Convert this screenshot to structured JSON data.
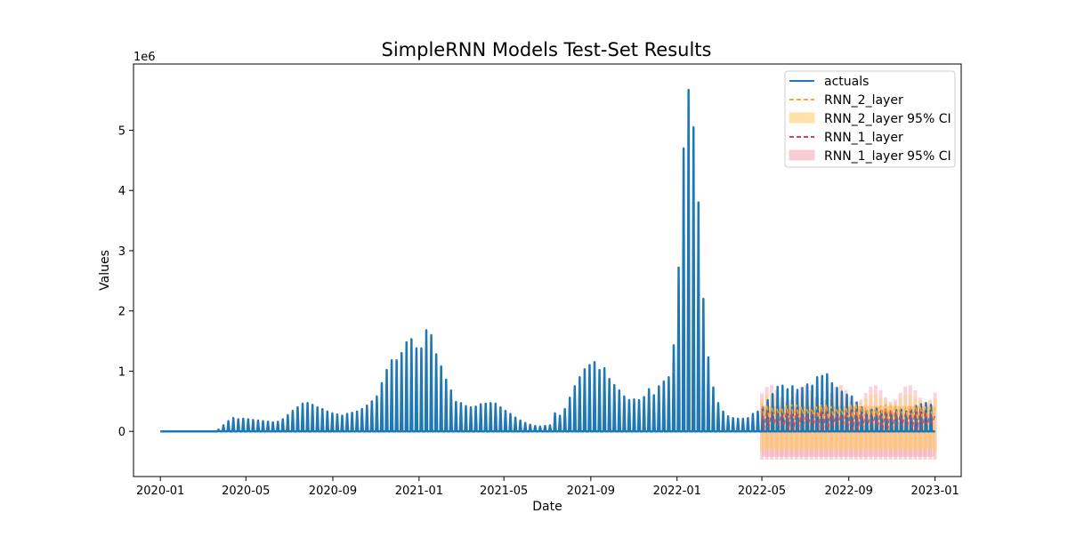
{
  "chart_data": {
    "type": "line",
    "title": "SimpleRNN Models Test-Set Results",
    "xlabel": "Date",
    "ylabel": "Values",
    "y_offset_text": "1e6",
    "xlim": [
      "2019-11-24",
      "2023-02-07"
    ],
    "ylim": [
      -0.75,
      6.1
    ],
    "y_ticks": [
      0,
      1,
      2,
      3,
      4,
      5
    ],
    "x_ticks": [
      "2020-01",
      "2020-05",
      "2020-09",
      "2021-01",
      "2021-05",
      "2021-09",
      "2022-01",
      "2022-05",
      "2022-09",
      "2023-01"
    ],
    "legend_position": "top-right",
    "legend": [
      {
        "label": "actuals",
        "kind": "line",
        "color": "#1f77b4"
      },
      {
        "label": "RNN_2_layer",
        "kind": "dashed",
        "color": "#ffa726"
      },
      {
        "label": "RNN_2_layer 95% CI",
        "kind": "band",
        "color": "#ffcc66"
      },
      {
        "label": "RNN_1_layer",
        "kind": "dashed",
        "color": "#d9435a"
      },
      {
        "label": "RNN_1_layer 95% CI",
        "kind": "band",
        "color": "#f4a6b4"
      }
    ],
    "series": [
      {
        "name": "actuals",
        "color": "#1f77b4",
        "weekly_peaks": [
          [
            "2020-01-01",
            0.0
          ],
          [
            "2020-02-01",
            0.0
          ],
          [
            "2020-03-01",
            0.0
          ],
          [
            "2020-03-22",
            0.03
          ],
          [
            "2020-03-29",
            0.1
          ],
          [
            "2020-04-05",
            0.17
          ],
          [
            "2020-04-12",
            0.22
          ],
          [
            "2020-04-19",
            0.2
          ],
          [
            "2020-04-26",
            0.21
          ],
          [
            "2020-05-03",
            0.2
          ],
          [
            "2020-05-10",
            0.19
          ],
          [
            "2020-05-17",
            0.18
          ],
          [
            "2020-05-24",
            0.17
          ],
          [
            "2020-05-31",
            0.16
          ],
          [
            "2020-06-07",
            0.15
          ],
          [
            "2020-06-14",
            0.16
          ],
          [
            "2020-06-21",
            0.2
          ],
          [
            "2020-06-28",
            0.27
          ],
          [
            "2020-07-05",
            0.34
          ],
          [
            "2020-07-12",
            0.4
          ],
          [
            "2020-07-19",
            0.46
          ],
          [
            "2020-07-26",
            0.47
          ],
          [
            "2020-08-02",
            0.44
          ],
          [
            "2020-08-09",
            0.4
          ],
          [
            "2020-08-16",
            0.37
          ],
          [
            "2020-08-23",
            0.33
          ],
          [
            "2020-08-30",
            0.3
          ],
          [
            "2020-09-06",
            0.28
          ],
          [
            "2020-09-13",
            0.26
          ],
          [
            "2020-09-20",
            0.29
          ],
          [
            "2020-09-27",
            0.31
          ],
          [
            "2020-10-04",
            0.33
          ],
          [
            "2020-10-11",
            0.37
          ],
          [
            "2020-10-18",
            0.43
          ],
          [
            "2020-10-25",
            0.5
          ],
          [
            "2020-11-01",
            0.58
          ],
          [
            "2020-11-08",
            0.8
          ],
          [
            "2020-11-15",
            1.02
          ],
          [
            "2020-11-22",
            1.18
          ],
          [
            "2020-11-29",
            1.18
          ],
          [
            "2020-12-06",
            1.3
          ],
          [
            "2020-12-13",
            1.48
          ],
          [
            "2020-12-20",
            1.53
          ],
          [
            "2020-12-27",
            1.38
          ],
          [
            "2021-01-03",
            1.38
          ],
          [
            "2021-01-10",
            1.68
          ],
          [
            "2021-01-17",
            1.6
          ],
          [
            "2021-01-24",
            1.28
          ],
          [
            "2021-01-31",
            1.08
          ],
          [
            "2021-02-07",
            0.86
          ],
          [
            "2021-02-14",
            0.68
          ],
          [
            "2021-02-21",
            0.49
          ],
          [
            "2021-02-28",
            0.47
          ],
          [
            "2021-03-07",
            0.42
          ],
          [
            "2021-03-14",
            0.4
          ],
          [
            "2021-03-21",
            0.41
          ],
          [
            "2021-03-28",
            0.45
          ],
          [
            "2021-04-04",
            0.46
          ],
          [
            "2021-04-11",
            0.47
          ],
          [
            "2021-04-18",
            0.46
          ],
          [
            "2021-04-25",
            0.4
          ],
          [
            "2021-05-02",
            0.34
          ],
          [
            "2021-05-09",
            0.29
          ],
          [
            "2021-05-16",
            0.23
          ],
          [
            "2021-05-23",
            0.18
          ],
          [
            "2021-05-30",
            0.14
          ],
          [
            "2021-06-06",
            0.11
          ],
          [
            "2021-06-13",
            0.09
          ],
          [
            "2021-06-20",
            0.08
          ],
          [
            "2021-06-27",
            0.09
          ],
          [
            "2021-07-04",
            0.1
          ],
          [
            "2021-07-11",
            0.3
          ],
          [
            "2021-07-18",
            0.26
          ],
          [
            "2021-07-25",
            0.37
          ],
          [
            "2021-08-01",
            0.56
          ],
          [
            "2021-08-08",
            0.75
          ],
          [
            "2021-08-15",
            0.9
          ],
          [
            "2021-08-22",
            1.03
          ],
          [
            "2021-08-29",
            1.1
          ],
          [
            "2021-09-05",
            1.15
          ],
          [
            "2021-09-12",
            1.02
          ],
          [
            "2021-09-19",
            1.05
          ],
          [
            "2021-09-26",
            0.87
          ],
          [
            "2021-10-03",
            0.77
          ],
          [
            "2021-10-10",
            0.68
          ],
          [
            "2021-10-17",
            0.58
          ],
          [
            "2021-10-24",
            0.52
          ],
          [
            "2021-10-31",
            0.53
          ],
          [
            "2021-11-07",
            0.52
          ],
          [
            "2021-11-14",
            0.57
          ],
          [
            "2021-11-21",
            0.7
          ],
          [
            "2021-11-28",
            0.6
          ],
          [
            "2021-12-05",
            0.75
          ],
          [
            "2021-12-12",
            0.83
          ],
          [
            "2021-12-19",
            0.9
          ],
          [
            "2021-12-26",
            1.43
          ],
          [
            "2022-01-02",
            2.72
          ],
          [
            "2022-01-09",
            4.7
          ],
          [
            "2022-01-16",
            5.67
          ],
          [
            "2022-01-23",
            5.05
          ],
          [
            "2022-01-30",
            3.8
          ],
          [
            "2022-02-06",
            2.2
          ],
          [
            "2022-02-13",
            1.23
          ],
          [
            "2022-02-20",
            0.73
          ],
          [
            "2022-02-27",
            0.47
          ],
          [
            "2022-03-06",
            0.33
          ],
          [
            "2022-03-13",
            0.25
          ],
          [
            "2022-03-20",
            0.22
          ],
          [
            "2022-03-27",
            0.21
          ],
          [
            "2022-04-03",
            0.21
          ],
          [
            "2022-04-10",
            0.22
          ],
          [
            "2022-04-17",
            0.29
          ],
          [
            "2022-04-24",
            0.33
          ],
          [
            "2022-05-01",
            0.4
          ],
          [
            "2022-05-08",
            0.52
          ],
          [
            "2022-05-15",
            0.62
          ],
          [
            "2022-05-22",
            0.74
          ],
          [
            "2022-05-29",
            0.76
          ],
          [
            "2022-06-05",
            0.7
          ],
          [
            "2022-06-12",
            0.75
          ],
          [
            "2022-06-19",
            0.69
          ],
          [
            "2022-06-26",
            0.72
          ],
          [
            "2022-07-03",
            0.78
          ],
          [
            "2022-07-10",
            0.76
          ],
          [
            "2022-07-17",
            0.9
          ],
          [
            "2022-07-24",
            0.92
          ],
          [
            "2022-07-31",
            0.95
          ],
          [
            "2022-08-07",
            0.8
          ],
          [
            "2022-08-14",
            0.72
          ],
          [
            "2022-08-21",
            0.66
          ],
          [
            "2022-08-28",
            0.61
          ],
          [
            "2022-09-04",
            0.58
          ],
          [
            "2022-09-11",
            0.48
          ],
          [
            "2022-09-18",
            0.4
          ],
          [
            "2022-09-25",
            0.34
          ],
          [
            "2022-10-02",
            0.36
          ],
          [
            "2022-10-09",
            0.38
          ],
          [
            "2022-10-16",
            0.34
          ],
          [
            "2022-10-23",
            0.33
          ],
          [
            "2022-10-30",
            0.32
          ],
          [
            "2022-11-06",
            0.35
          ],
          [
            "2022-11-13",
            0.36
          ],
          [
            "2022-11-20",
            0.33
          ],
          [
            "2022-11-27",
            0.36
          ],
          [
            "2022-12-04",
            0.42
          ],
          [
            "2022-12-11",
            0.45
          ],
          [
            "2022-12-18",
            0.47
          ],
          [
            "2022-12-25",
            0.44
          ],
          [
            "2023-01-01",
            0.0
          ]
        ]
      },
      {
        "name": "RNN_2_layer",
        "color": "#ffa726",
        "range": [
          "2022-05-01",
          "2023-01-01"
        ],
        "level": 0.33,
        "ci": [
          -0.28,
          0.42
        ]
      },
      {
        "name": "RNN_1_layer",
        "color": "#d9435a",
        "range": [
          "2022-05-01",
          "2023-01-01"
        ],
        "level": 0.2,
        "ci": [
          -0.42,
          0.42
        ]
      }
    ]
  }
}
